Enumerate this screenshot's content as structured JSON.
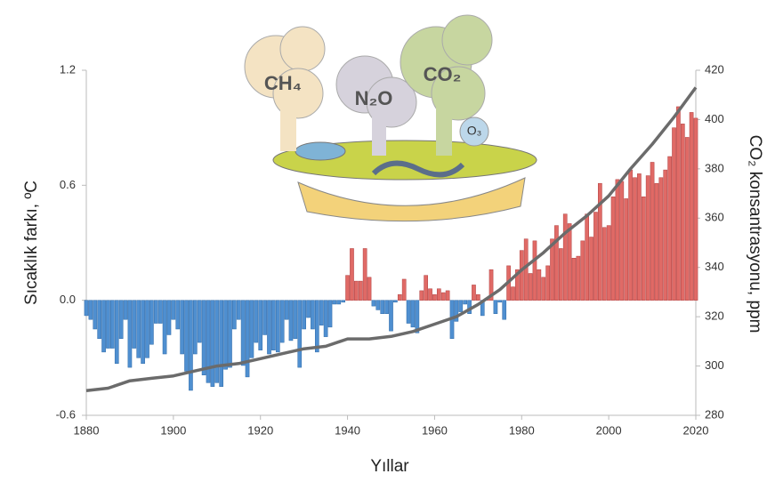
{
  "chart_data": {
    "type": "bar",
    "xlabel": "Yıllar",
    "ylabel": "Sıcaklık farkı, ºC",
    "y2label": "CO₂ konsantrasyonu, ppm",
    "annotations": [
      "CH₄",
      "N₂O",
      "CO₂",
      "O₃"
    ],
    "xlim": [
      1880,
      2020
    ],
    "xticks": [
      1880,
      1900,
      1920,
      1940,
      1960,
      1980,
      2000,
      2020
    ],
    "ylim": [
      -0.6,
      1.2
    ],
    "yticks": [
      -0.6,
      {
        "value": 0,
        "label": "0.0"
      },
      0.6,
      1.2
    ],
    "y2lim": [
      280,
      420
    ],
    "y2ticks": [
      280,
      300,
      320,
      340,
      360,
      380,
      400,
      420
    ],
    "x": [
      1880,
      1881,
      1882,
      1883,
      1884,
      1885,
      1886,
      1887,
      1888,
      1889,
      1890,
      1891,
      1892,
      1893,
      1894,
      1895,
      1896,
      1897,
      1898,
      1899,
      1900,
      1901,
      1902,
      1903,
      1904,
      1905,
      1906,
      1907,
      1908,
      1909,
      1910,
      1911,
      1912,
      1913,
      1914,
      1915,
      1916,
      1917,
      1918,
      1919,
      1920,
      1921,
      1922,
      1923,
      1924,
      1925,
      1926,
      1927,
      1928,
      1929,
      1930,
      1931,
      1932,
      1933,
      1934,
      1935,
      1936,
      1937,
      1938,
      1939,
      1940,
      1941,
      1942,
      1943,
      1944,
      1945,
      1946,
      1947,
      1948,
      1949,
      1950,
      1951,
      1952,
      1953,
      1954,
      1955,
      1956,
      1957,
      1958,
      1959,
      1960,
      1961,
      1962,
      1963,
      1964,
      1965,
      1966,
      1967,
      1968,
      1969,
      1970,
      1971,
      1972,
      1973,
      1974,
      1975,
      1976,
      1977,
      1978,
      1979,
      1980,
      1981,
      1982,
      1983,
      1984,
      1985,
      1986,
      1987,
      1988,
      1989,
      1990,
      1991,
      1992,
      1993,
      1994,
      1995,
      1996,
      1997,
      1998,
      1999,
      2000,
      2001,
      2002,
      2003,
      2004,
      2005,
      2006,
      2007,
      2008,
      2009,
      2010,
      2011,
      2012,
      2013,
      2014,
      2015,
      2016,
      2017,
      2018,
      2019,
      2020
    ],
    "series": [
      {
        "type": "bar",
        "color_positive": "#e06a66",
        "color_negative": "#4f8fd0",
        "values": [
          -0.08,
          -0.1,
          -0.15,
          -0.2,
          -0.27,
          -0.25,
          -0.25,
          -0.33,
          -0.2,
          -0.1,
          -0.35,
          -0.25,
          -0.3,
          -0.33,
          -0.3,
          -0.23,
          -0.12,
          -0.12,
          -0.28,
          -0.18,
          -0.1,
          -0.15,
          -0.28,
          -0.37,
          -0.47,
          -0.28,
          -0.22,
          -0.39,
          -0.43,
          -0.45,
          -0.43,
          -0.45,
          -0.36,
          -0.35,
          -0.15,
          -0.1,
          -0.34,
          -0.4,
          -0.3,
          -0.22,
          -0.26,
          -0.18,
          -0.28,
          -0.26,
          -0.27,
          -0.22,
          -0.1,
          -0.21,
          -0.2,
          -0.35,
          -0.15,
          -0.09,
          -0.15,
          -0.27,
          -0.13,
          -0.19,
          -0.14,
          -0.02,
          -0.02,
          -0.01,
          0.13,
          0.27,
          0.1,
          0.1,
          0.27,
          0.12,
          -0.03,
          -0.05,
          -0.07,
          -0.07,
          -0.16,
          -0.01,
          0.03,
          0.11,
          -0.12,
          -0.14,
          -0.17,
          0.05,
          0.13,
          0.06,
          0.03,
          0.06,
          0.04,
          0.05,
          -0.2,
          -0.11,
          -0.06,
          -0.02,
          -0.07,
          0.08,
          0.03,
          -0.08,
          0.01,
          0.16,
          -0.07,
          -0.01,
          -0.1,
          0.18,
          0.07,
          0.16,
          0.26,
          0.32,
          0.14,
          0.31,
          0.16,
          0.12,
          0.18,
          0.32,
          0.39,
          0.27,
          0.45,
          0.4,
          0.22,
          0.23,
          0.31,
          0.45,
          0.33,
          0.46,
          0.61,
          0.38,
          0.39,
          0.54,
          0.63,
          0.62,
          0.53,
          0.68,
          0.64,
          0.66,
          0.54,
          0.65,
          0.72,
          0.61,
          0.64,
          0.68,
          0.75,
          0.9,
          1.01,
          0.92,
          0.85,
          0.98,
          0.95
        ]
      },
      {
        "type": "line",
        "axis": "y2",
        "color": "#6b6b6b",
        "x": [
          1880,
          1885,
          1890,
          1895,
          1900,
          1905,
          1910,
          1915,
          1920,
          1925,
          1930,
          1935,
          1940,
          1945,
          1950,
          1955,
          1960,
          1965,
          1970,
          1975,
          1980,
          1985,
          1990,
          1995,
          2000,
          2005,
          2010,
          2015,
          2020
        ],
        "values": [
          290,
          291,
          294,
          295,
          296,
          298,
          300,
          301,
          303,
          305,
          307,
          308,
          311,
          311,
          312,
          314,
          317,
          320,
          325,
          331,
          339,
          346,
          354,
          361,
          369,
          380,
          390,
          401,
          413
        ]
      }
    ]
  }
}
